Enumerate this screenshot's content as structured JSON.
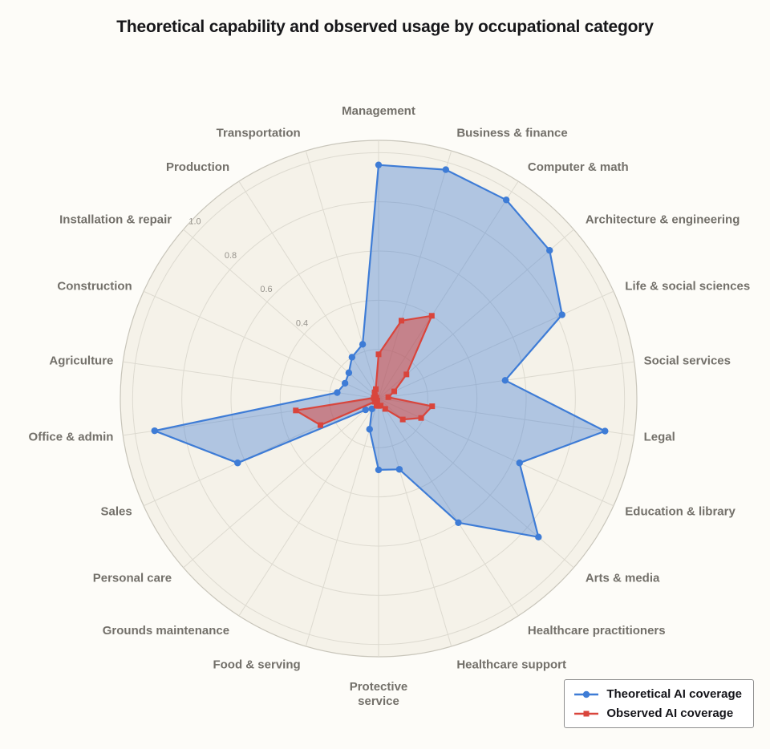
{
  "chart_data": {
    "type": "radar",
    "title": "Theoretical capability and observed usage by occupational category",
    "categories": [
      "Management",
      "Business & finance",
      "Computer & math",
      "Architecture & engineering",
      "Life & social sciences",
      "Social services",
      "Legal",
      "Education & library",
      "Arts & media",
      "Healthcare practitioners",
      "Healthcare support",
      "Protective service",
      "Food & serving",
      "Grounds maintenance",
      "Personal care",
      "Sales",
      "Office & admin",
      "Agriculture",
      "Construction",
      "Installation & repair",
      "Production",
      "Transportation"
    ],
    "series": [
      {
        "name": "Theoretical AI coverage",
        "marker": "circle",
        "color": "#3E7CD6",
        "fill": "rgba(62,124,214,0.38)",
        "values": [
          0.95,
          0.97,
          0.96,
          0.92,
          0.82,
          0.52,
          0.93,
          0.63,
          0.86,
          0.6,
          0.3,
          0.29,
          0.13,
          0.05,
          0.07,
          0.63,
          0.92,
          0.17,
          0.15,
          0.16,
          0.2,
          0.23
        ]
      },
      {
        "name": "Observed AI coverage",
        "marker": "square",
        "color": "#D9453C",
        "fill": "rgba(217,69,60,0.52)",
        "values": [
          0.18,
          0.33,
          0.4,
          0.15,
          0.07,
          0.04,
          0.22,
          0.19,
          0.13,
          0.05,
          0.03,
          0.03,
          0.03,
          0.01,
          0.02,
          0.26,
          0.34,
          0.02,
          0.01,
          0.02,
          0.03,
          0.04
        ]
      }
    ],
    "radial_ticks": [
      0.4,
      0.6,
      0.8,
      1.0
    ],
    "grid_rings": [
      0.2,
      0.4,
      0.6,
      0.8,
      1.0
    ],
    "r_max": 1.05,
    "grid": true,
    "legend_position": "bottom-right",
    "colors": {
      "plot_bg": "#F5F2E9",
      "grid": "#DDDAD0",
      "grid_outer": "#C8C5BA"
    }
  }
}
